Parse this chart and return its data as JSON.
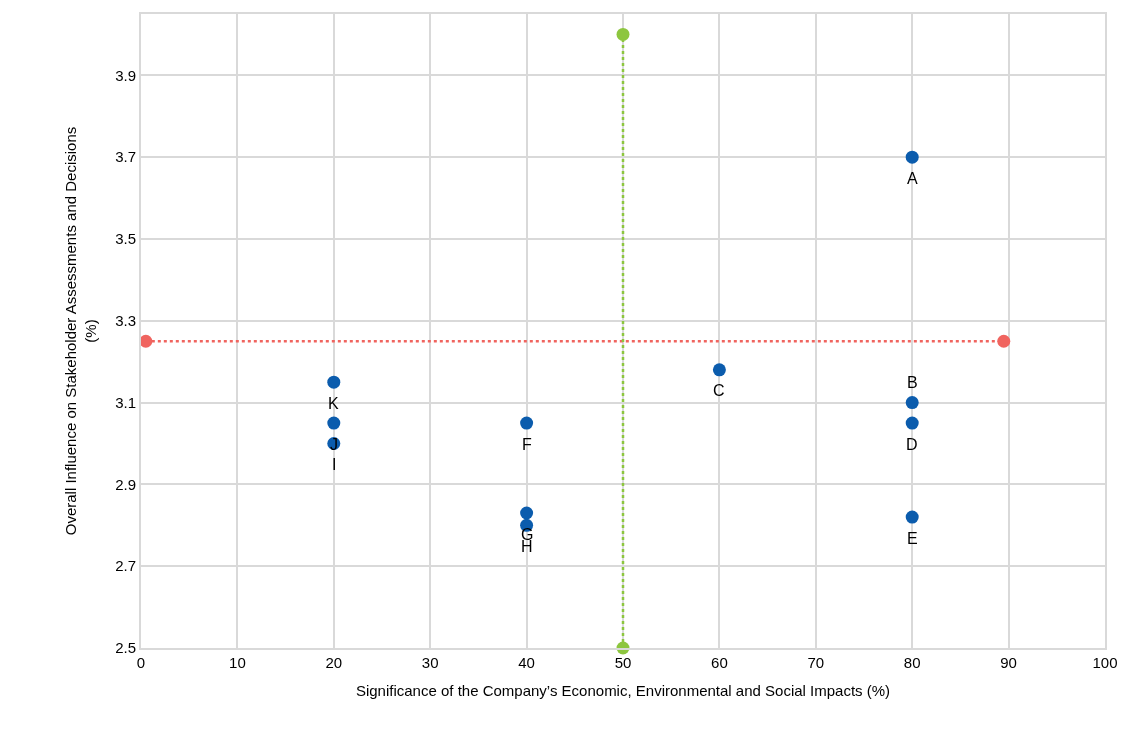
{
  "chart_data": {
    "type": "scatter",
    "xlabel": "Significance of the Company’s Economic, Environmental and Social Impacts (%)",
    "ylabel": "Overall Influence on Stakeholder Assessments and Decisions\n(%)",
    "x": [
      80,
      80,
      60,
      80,
      80,
      40,
      40,
      40,
      20,
      20,
      20
    ],
    "series": [
      {
        "color": "#0b5cad",
        "values": [
          3.7,
          3.1,
          3.18,
          3.05,
          2.82,
          3.05,
          2.83,
          2.8,
          3.0,
          3.05,
          3.15
        ],
        "marker": "circle"
      },
      {
        "type": "line",
        "x": [
          0.5,
          89.5
        ],
        "color": "#f0645f",
        "values": [
          3.25,
          3.25
        ],
        "marker": "circle",
        "line_style": "dotted"
      },
      {
        "type": "line",
        "x": [
          50,
          50
        ],
        "color": "#8dc63f",
        "values": [
          2.5,
          4.0
        ],
        "marker": "circle",
        "line_style": "dotted"
      }
    ],
    "annotations": [
      {
        "text": "A",
        "x": 80,
        "y": 3.7
      },
      {
        "text": "B",
        "x": 80,
        "y": 3.1
      },
      {
        "text": "C",
        "x": 60,
        "y": 3.18
      },
      {
        "text": "D",
        "x": 80,
        "y": 3.05
      },
      {
        "text": "E",
        "x": 80,
        "y": 2.82
      },
      {
        "text": "F",
        "x": 40,
        "y": 3.05
      },
      {
        "text": "G",
        "x": 40,
        "y": 2.83
      },
      {
        "text": "H",
        "x": 40,
        "y": 2.8
      },
      {
        "text": "I",
        "x": 20,
        "y": 3.0
      },
      {
        "text": "J",
        "x": 20,
        "y": 3.05
      },
      {
        "text": "K",
        "x": 20,
        "y": 3.15
      }
    ],
    "xlim": [
      0,
      100
    ],
    "xticks": [
      0,
      10,
      20,
      30,
      40,
      50,
      60,
      70,
      80,
      90,
      100
    ],
    "ylim": [
      2.5,
      4.05
    ],
    "yticks": [
      2.5,
      2.7,
      2.9,
      3.1,
      3.3,
      3.5,
      3.7,
      3.9
    ],
    "grid": true
  }
}
